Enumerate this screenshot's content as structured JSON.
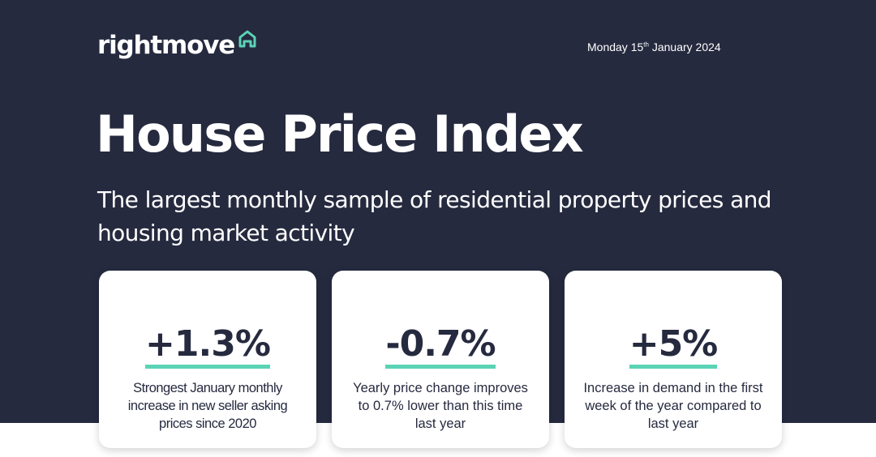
{
  "brand": {
    "name": "rightmove",
    "accent_color": "#5bd3b6",
    "background_color": "#262a3f",
    "icon": "house-outline-icon"
  },
  "header": {
    "date_prefix": "Monday 15",
    "date_suffix": "th",
    "date_rest": " January 2024"
  },
  "title": "House Price Index",
  "subtitle": "The largest monthly sample of residential property prices and housing market activity",
  "cards": [
    {
      "value": "+1.3%",
      "description": "Strongest January monthly increase in new seller asking prices since 2020"
    },
    {
      "value": "-0.7%",
      "description": "Yearly price change improves to 0.7% lower than this time last year"
    },
    {
      "value": "+5%",
      "description": "Increase in demand in the first week of the year compared to last year"
    }
  ]
}
